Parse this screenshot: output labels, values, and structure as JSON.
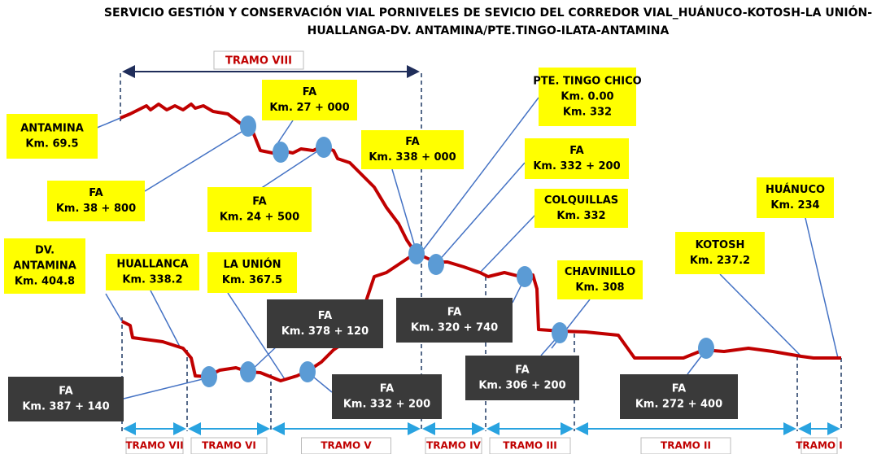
{
  "title": {
    "lines": [
      "SERVICIO GESTIÓN Y CONSERVACIÓN VIAL PORNIVELES DE SEVICIO DEL CORREDOR VIAL_HUÁNUCO-KOTOSH-LA UNIÓN-",
      "HUALLANGA-DV. ANTAMINA/PTE.TINGO-ILATA-ANTAMINA"
    ]
  },
  "tramo_top": "TRAMO VIII",
  "tramos": [
    "TRAMO VII",
    "TRAMO VI",
    "TRAMO V",
    "TRAMO IV",
    "TRAMO III",
    "TRAMO II",
    "TRAMO I"
  ],
  "labels": [
    {
      "lines": [
        "ANTAMINA",
        "Km. 69.5"
      ]
    },
    {
      "lines": [
        "FA",
        "Km. 27 + 000"
      ]
    },
    {
      "lines": [
        "FA",
        "Km. 38 + 800"
      ]
    },
    {
      "lines": [
        "FA",
        "Km. 24 + 500"
      ]
    },
    {
      "lines": [
        "FA",
        "Km. 338 + 000"
      ]
    },
    {
      "lines": [
        "PTE. TINGO CHICO",
        "Km. 0.00",
        "Km. 332"
      ]
    },
    {
      "lines": [
        "FA",
        "Km. 332 + 200"
      ]
    },
    {
      "lines": [
        "COLQUILLAS",
        "Km. 332"
      ]
    },
    {
      "lines": [
        "HUÁNUCO",
        "Km. 234"
      ]
    },
    {
      "lines": [
        "KOTOSH",
        "Km. 237.2"
      ]
    },
    {
      "lines": [
        "DV.",
        "ANTAMINA",
        "Km. 404.8"
      ]
    },
    {
      "lines": [
        "HUALLANCA",
        "Km. 338.2"
      ]
    },
    {
      "lines": [
        "LA UNIÓN",
        "Km. 367.5"
      ]
    },
    {
      "lines": [
        "CHAVINILLO",
        "Km. 308"
      ]
    }
  ],
  "dark_labels": [
    {
      "lines": [
        "FA",
        "Km. 378 + 120"
      ]
    },
    {
      "lines": [
        "FA",
        "Km. 320 + 740"
      ]
    },
    {
      "lines": [
        "FA",
        "Km. 387 + 140"
      ]
    },
    {
      "lines": [
        "FA",
        "Km. 332 + 200"
      ]
    },
    {
      "lines": [
        "FA",
        "Km. 306 + 200"
      ]
    },
    {
      "lines": [
        "FA",
        "Km. 272 + 400"
      ]
    }
  ]
}
